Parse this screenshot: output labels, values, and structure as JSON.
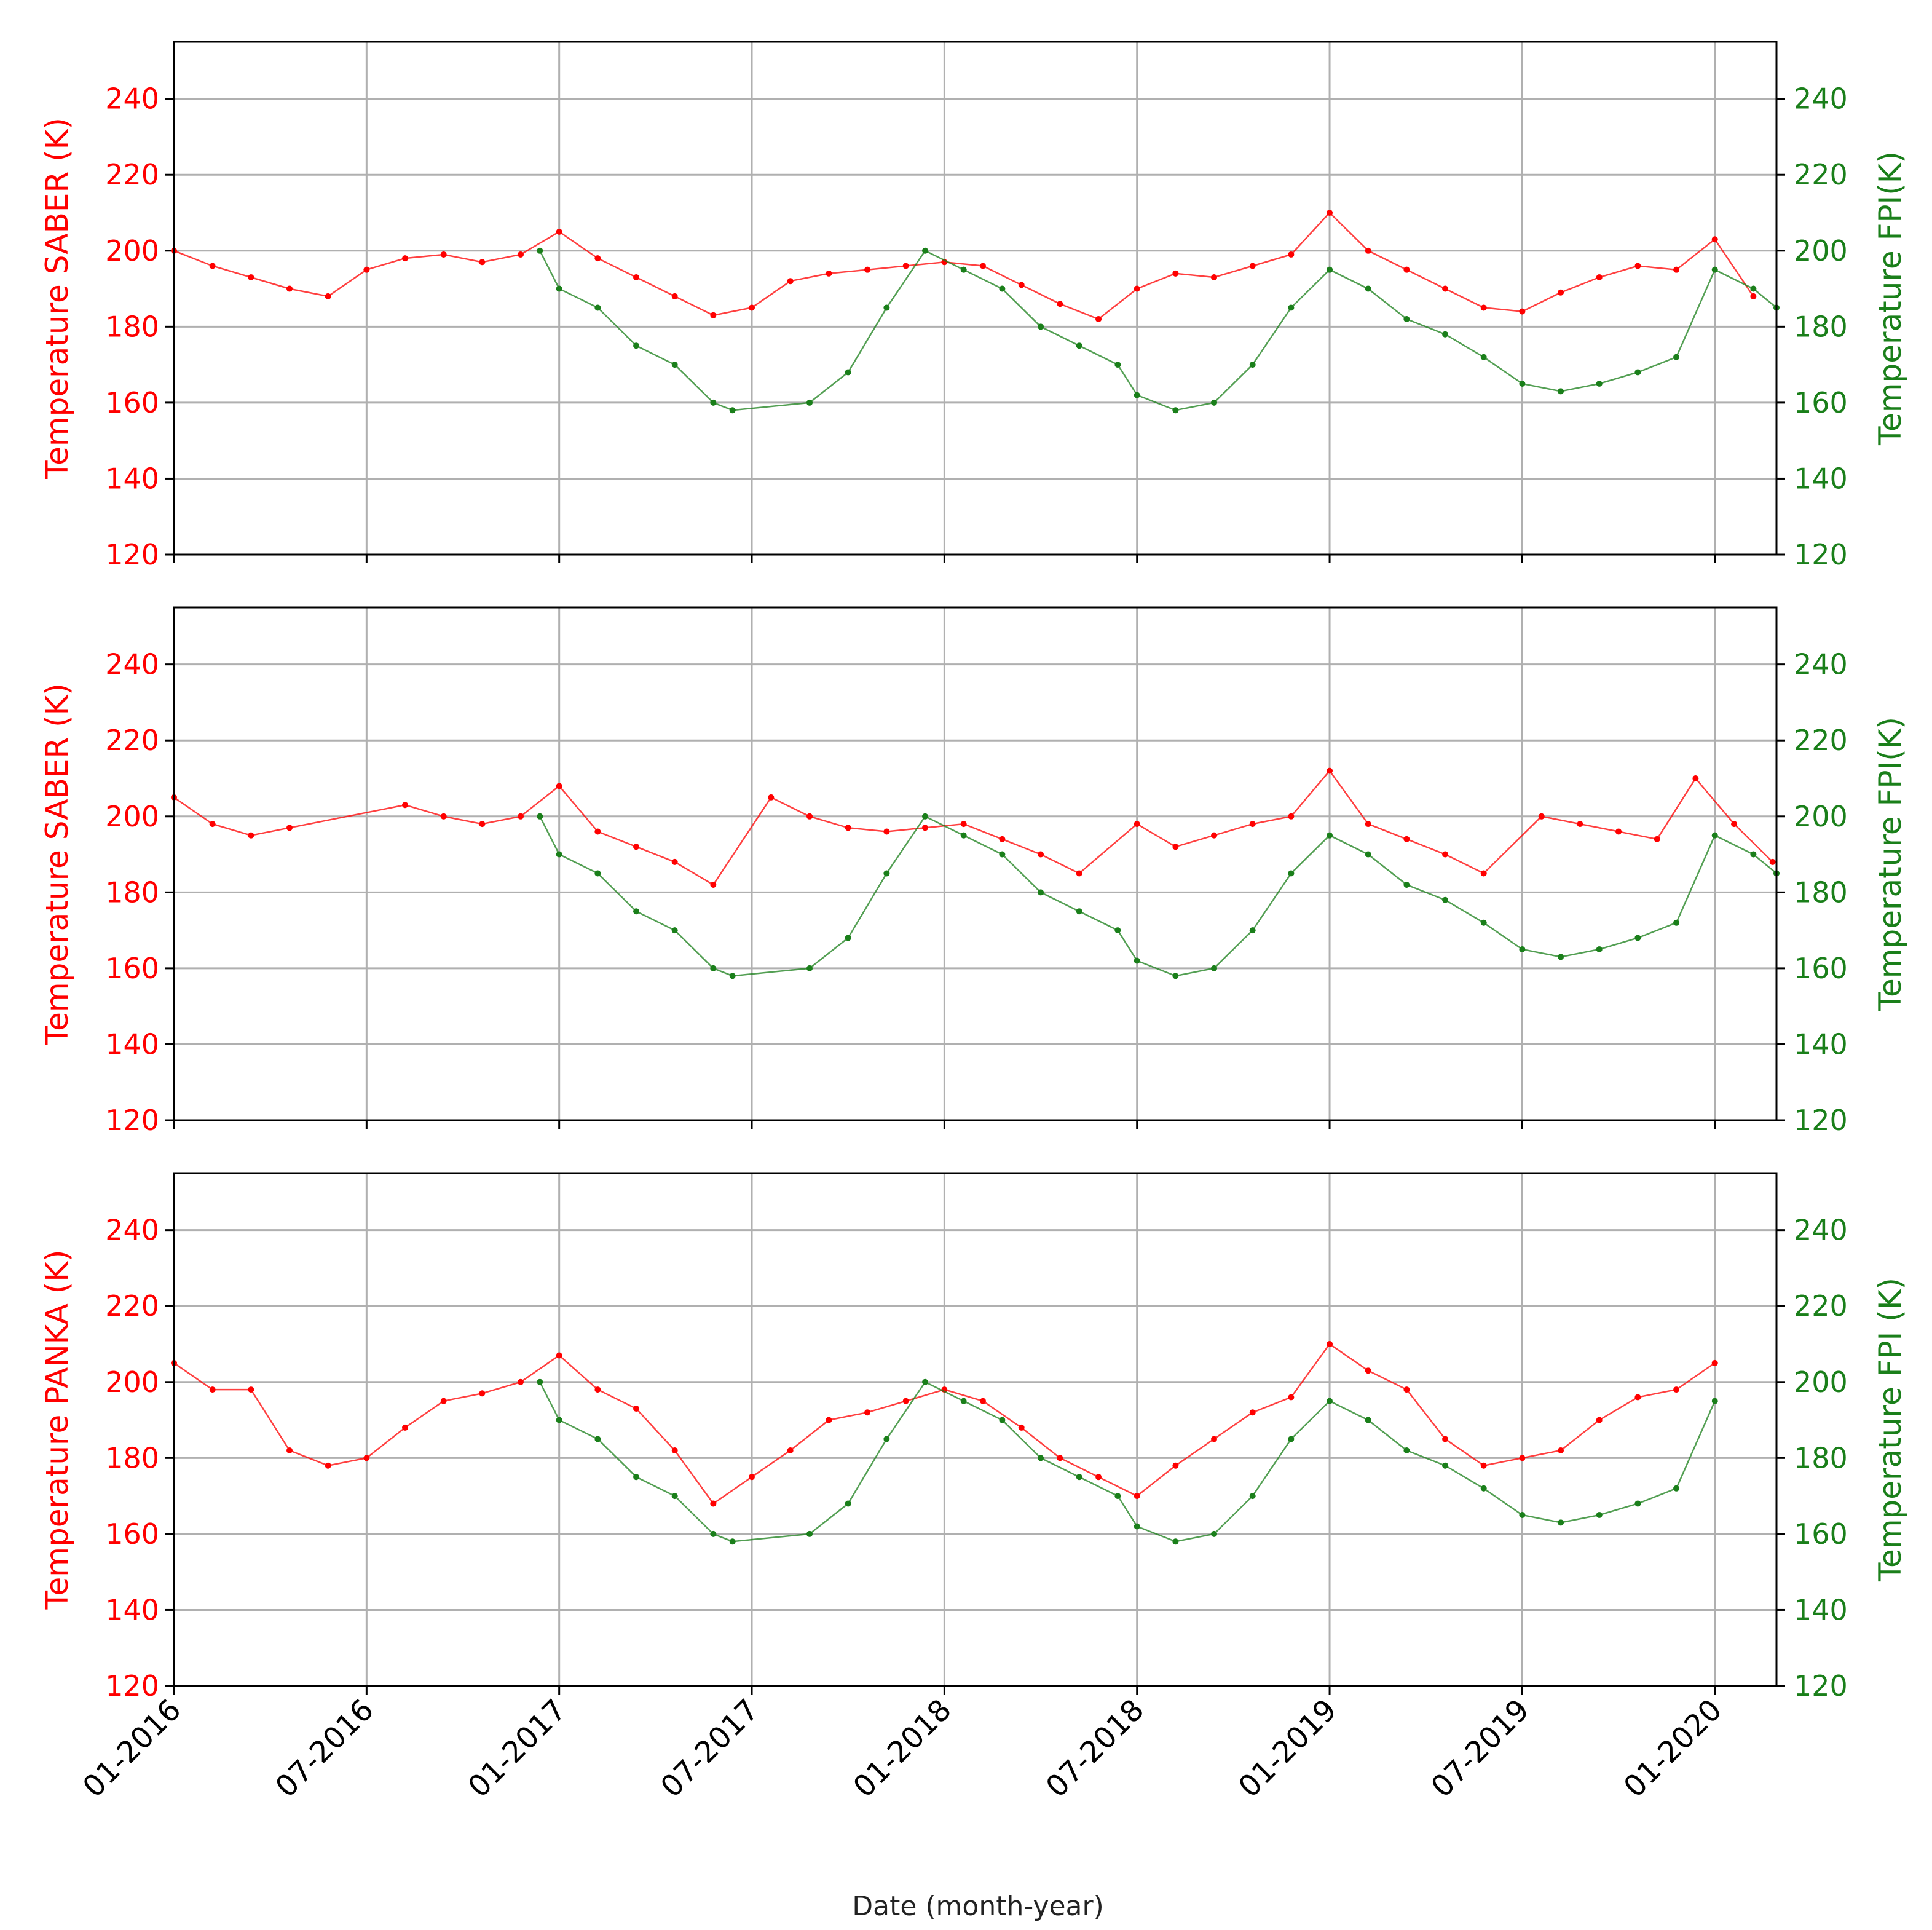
{
  "colors": {
    "saber": "#ff0000",
    "fpi": "#1a7f1a",
    "grid": "#b0b0b0",
    "axis": "#000000"
  },
  "chart_data": {
    "type": "line",
    "xlabel": "Date (month-year)",
    "x_ticks": [
      "01-2016",
      "07-2016",
      "01-2017",
      "07-2017",
      "01-2018",
      "07-2018",
      "01-2019",
      "07-2019",
      "01-2020"
    ],
    "x_tick_values": [
      2016.0,
      2016.5,
      2017.0,
      2017.5,
      2018.0,
      2018.5,
      2019.0,
      2019.5,
      2020.0
    ],
    "xlim": [
      2016.0,
      2020.16
    ],
    "ylim": [
      120,
      255
    ],
    "y_ticks": [
      120,
      140,
      160,
      180,
      200,
      220,
      240
    ],
    "panels": [
      {
        "ylabel_left": "Temperature SABER (K)",
        "ylabel_right": "Temperature  FPI(K)",
        "series": [
          {
            "name": "SABER",
            "color": "#ff0000",
            "x": [
              2016.0,
              2016.1,
              2016.2,
              2016.3,
              2016.4,
              2016.5,
              2016.6,
              2016.7,
              2016.8,
              2016.9,
              2017.0,
              2017.1,
              2017.2,
              2017.3,
              2017.4,
              2017.5,
              2017.6,
              2017.7,
              2017.8,
              2017.9,
              2018.0,
              2018.1,
              2018.2,
              2018.3,
              2018.4,
              2018.5,
              2018.6,
              2018.7,
              2018.8,
              2018.9,
              2019.0,
              2019.1,
              2019.2,
              2019.3,
              2019.4,
              2019.5,
              2019.6,
              2019.7,
              2019.8,
              2019.9,
              2020.0,
              2020.1
            ],
            "y": [
              200,
              196,
              193,
              190,
              188,
              195,
              198,
              199,
              197,
              199,
              205,
              198,
              193,
              188,
              183,
              185,
              192,
              194,
              195,
              196,
              197,
              196,
              191,
              186,
              182,
              190,
              194,
              193,
              196,
              199,
              210,
              200,
              195,
              190,
              185,
              184,
              189,
              193,
              196,
              195,
              203,
              188
            ]
          },
          {
            "name": "FPI",
            "color": "#1a7f1a",
            "x": [
              2016.95,
              2017.0,
              2017.1,
              2017.2,
              2017.3,
              2017.4,
              2017.45,
              2017.65,
              2017.75,
              2017.85,
              2017.95,
              2018.05,
              2018.15,
              2018.25,
              2018.35,
              2018.45,
              2018.5,
              2018.6,
              2018.7,
              2018.8,
              2018.9,
              2019.0,
              2019.1,
              2019.2,
              2019.3,
              2019.4,
              2019.5,
              2019.6,
              2019.7,
              2019.8,
              2019.9,
              2020.0,
              2020.1,
              2020.16
            ],
            "y": [
              200,
              190,
              185,
              175,
              170,
              160,
              158,
              160,
              168,
              185,
              200,
              195,
              190,
              180,
              175,
              170,
              162,
              158,
              160,
              170,
              185,
              195,
              190,
              182,
              178,
              172,
              165,
              163,
              165,
              168,
              172,
              195,
              190,
              185
            ]
          }
        ]
      },
      {
        "ylabel_left": "Temperature SABER (K)",
        "ylabel_right": "Temperature  FPI(K)",
        "series": [
          {
            "name": "SABER",
            "color": "#ff0000",
            "x": [
              2016.0,
              2016.1,
              2016.2,
              2016.3,
              2016.6,
              2016.7,
              2016.8,
              2016.9,
              2017.0,
              2017.1,
              2017.2,
              2017.3,
              2017.4,
              2017.55,
              2017.65,
              2017.75,
              2017.85,
              2017.95,
              2018.05,
              2018.15,
              2018.25,
              2018.35,
              2018.5,
              2018.6,
              2018.7,
              2018.8,
              2018.9,
              2019.0,
              2019.1,
              2019.2,
              2019.3,
              2019.4,
              2019.55,
              2019.65,
              2019.75,
              2019.85,
              2019.95,
              2020.05,
              2020.15
            ],
            "y": [
              205,
              198,
              195,
              197,
              203,
              200,
              198,
              200,
              208,
              196,
              192,
              188,
              182,
              205,
              200,
              197,
              196,
              197,
              198,
              194,
              190,
              185,
              198,
              192,
              195,
              198,
              200,
              212,
              198,
              194,
              190,
              185,
              200,
              198,
              196,
              194,
              210,
              198,
              188
            ]
          },
          {
            "name": "FPI",
            "color": "#1a7f1a",
            "x": [
              2016.95,
              2017.0,
              2017.1,
              2017.2,
              2017.3,
              2017.4,
              2017.45,
              2017.65,
              2017.75,
              2017.85,
              2017.95,
              2018.05,
              2018.15,
              2018.25,
              2018.35,
              2018.45,
              2018.5,
              2018.6,
              2018.7,
              2018.8,
              2018.9,
              2019.0,
              2019.1,
              2019.2,
              2019.3,
              2019.4,
              2019.5,
              2019.6,
              2019.7,
              2019.8,
              2019.9,
              2020.0,
              2020.1,
              2020.16
            ],
            "y": [
              200,
              190,
              185,
              175,
              170,
              160,
              158,
              160,
              168,
              185,
              200,
              195,
              190,
              180,
              175,
              170,
              162,
              158,
              160,
              170,
              185,
              195,
              190,
              182,
              178,
              172,
              165,
              163,
              165,
              168,
              172,
              195,
              190,
              185
            ]
          }
        ]
      },
      {
        "ylabel_left": "Temperature PANKA (K)",
        "ylabel_right": "Temperature FPI (K)",
        "series": [
          {
            "name": "PANKA",
            "color": "#ff0000",
            "x": [
              2016.0,
              2016.1,
              2016.2,
              2016.3,
              2016.4,
              2016.5,
              2016.6,
              2016.7,
              2016.8,
              2016.9,
              2017.0,
              2017.1,
              2017.2,
              2017.3,
              2017.4,
              2017.5,
              2017.6,
              2017.7,
              2017.8,
              2017.9,
              2018.0,
              2018.1,
              2018.2,
              2018.3,
              2018.4,
              2018.5,
              2018.6,
              2018.7,
              2018.8,
              2018.9,
              2019.0,
              2019.1,
              2019.2,
              2019.3,
              2019.4,
              2019.5,
              2019.6,
              2019.7,
              2019.8,
              2019.9,
              2020.0
            ],
            "y": [
              205,
              198,
              198,
              182,
              178,
              180,
              188,
              195,
              197,
              200,
              207,
              198,
              193,
              182,
              168,
              175,
              182,
              190,
              192,
              195,
              198,
              195,
              188,
              180,
              175,
              170,
              178,
              185,
              192,
              196,
              210,
              203,
              198,
              185,
              178,
              180,
              182,
              190,
              196,
              198,
              205
            ]
          },
          {
            "name": "FPI",
            "color": "#1a7f1a",
            "x": [
              2016.95,
              2017.0,
              2017.1,
              2017.2,
              2017.3,
              2017.4,
              2017.45,
              2017.65,
              2017.75,
              2017.85,
              2017.95,
              2018.05,
              2018.15,
              2018.25,
              2018.35,
              2018.45,
              2018.5,
              2018.6,
              2018.7,
              2018.8,
              2018.9,
              2019.0,
              2019.1,
              2019.2,
              2019.3,
              2019.4,
              2019.5,
              2019.6,
              2019.7,
              2019.8,
              2019.9,
              2020.0
            ],
            "y": [
              200,
              190,
              185,
              175,
              170,
              160,
              158,
              160,
              168,
              185,
              200,
              195,
              190,
              180,
              175,
              170,
              162,
              158,
              160,
              170,
              185,
              195,
              190,
              182,
              178,
              172,
              165,
              163,
              165,
              168,
              172,
              195
            ]
          }
        ]
      }
    ]
  }
}
